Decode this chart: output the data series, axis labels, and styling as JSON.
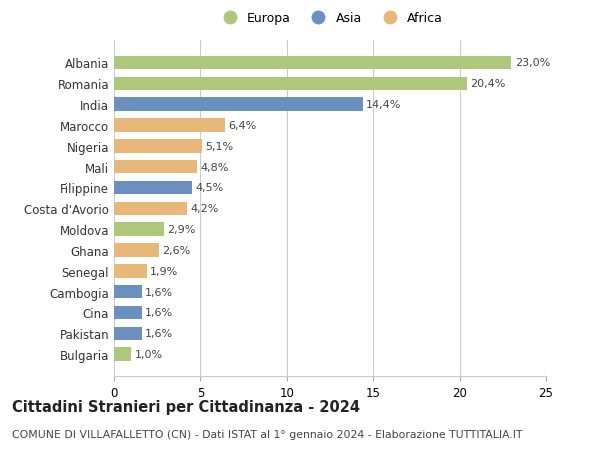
{
  "countries": [
    "Albania",
    "Romania",
    "India",
    "Marocco",
    "Nigeria",
    "Mali",
    "Filippine",
    "Costa d'Avorio",
    "Moldova",
    "Ghana",
    "Senegal",
    "Cambogia",
    "Cina",
    "Pakistan",
    "Bulgaria"
  ],
  "values": [
    23.0,
    20.4,
    14.4,
    6.4,
    5.1,
    4.8,
    4.5,
    4.2,
    2.9,
    2.6,
    1.9,
    1.6,
    1.6,
    1.6,
    1.0
  ],
  "continents": [
    "Europa",
    "Europa",
    "Asia",
    "Africa",
    "Africa",
    "Africa",
    "Asia",
    "Africa",
    "Europa",
    "Africa",
    "Africa",
    "Asia",
    "Asia",
    "Asia",
    "Europa"
  ],
  "colors": {
    "Europa": "#adc87a",
    "Asia": "#6b8fbf",
    "Africa": "#e8b87a"
  },
  "legend_labels": [
    "Europa",
    "Asia",
    "Africa"
  ],
  "legend_colors": [
    "#adc87a",
    "#6b8fbf",
    "#e8b87a"
  ],
  "title": "Cittadini Stranieri per Cittadinanza - 2024",
  "subtitle": "COMUNE DI VILLAFALLETTO (CN) - Dati ISTAT al 1° gennaio 2024 - Elaborazione TUTTITALIA.IT",
  "xlim": [
    0,
    25
  ],
  "xticks": [
    0,
    5,
    10,
    15,
    20,
    25
  ],
  "bg_color": "#ffffff",
  "grid_color": "#cccccc",
  "bar_label_fontsize": 8.0,
  "title_fontsize": 10.5,
  "subtitle_fontsize": 7.8,
  "ytick_fontsize": 8.5,
  "xtick_fontsize": 8.5,
  "legend_fontsize": 9.0,
  "bar_height": 0.65
}
